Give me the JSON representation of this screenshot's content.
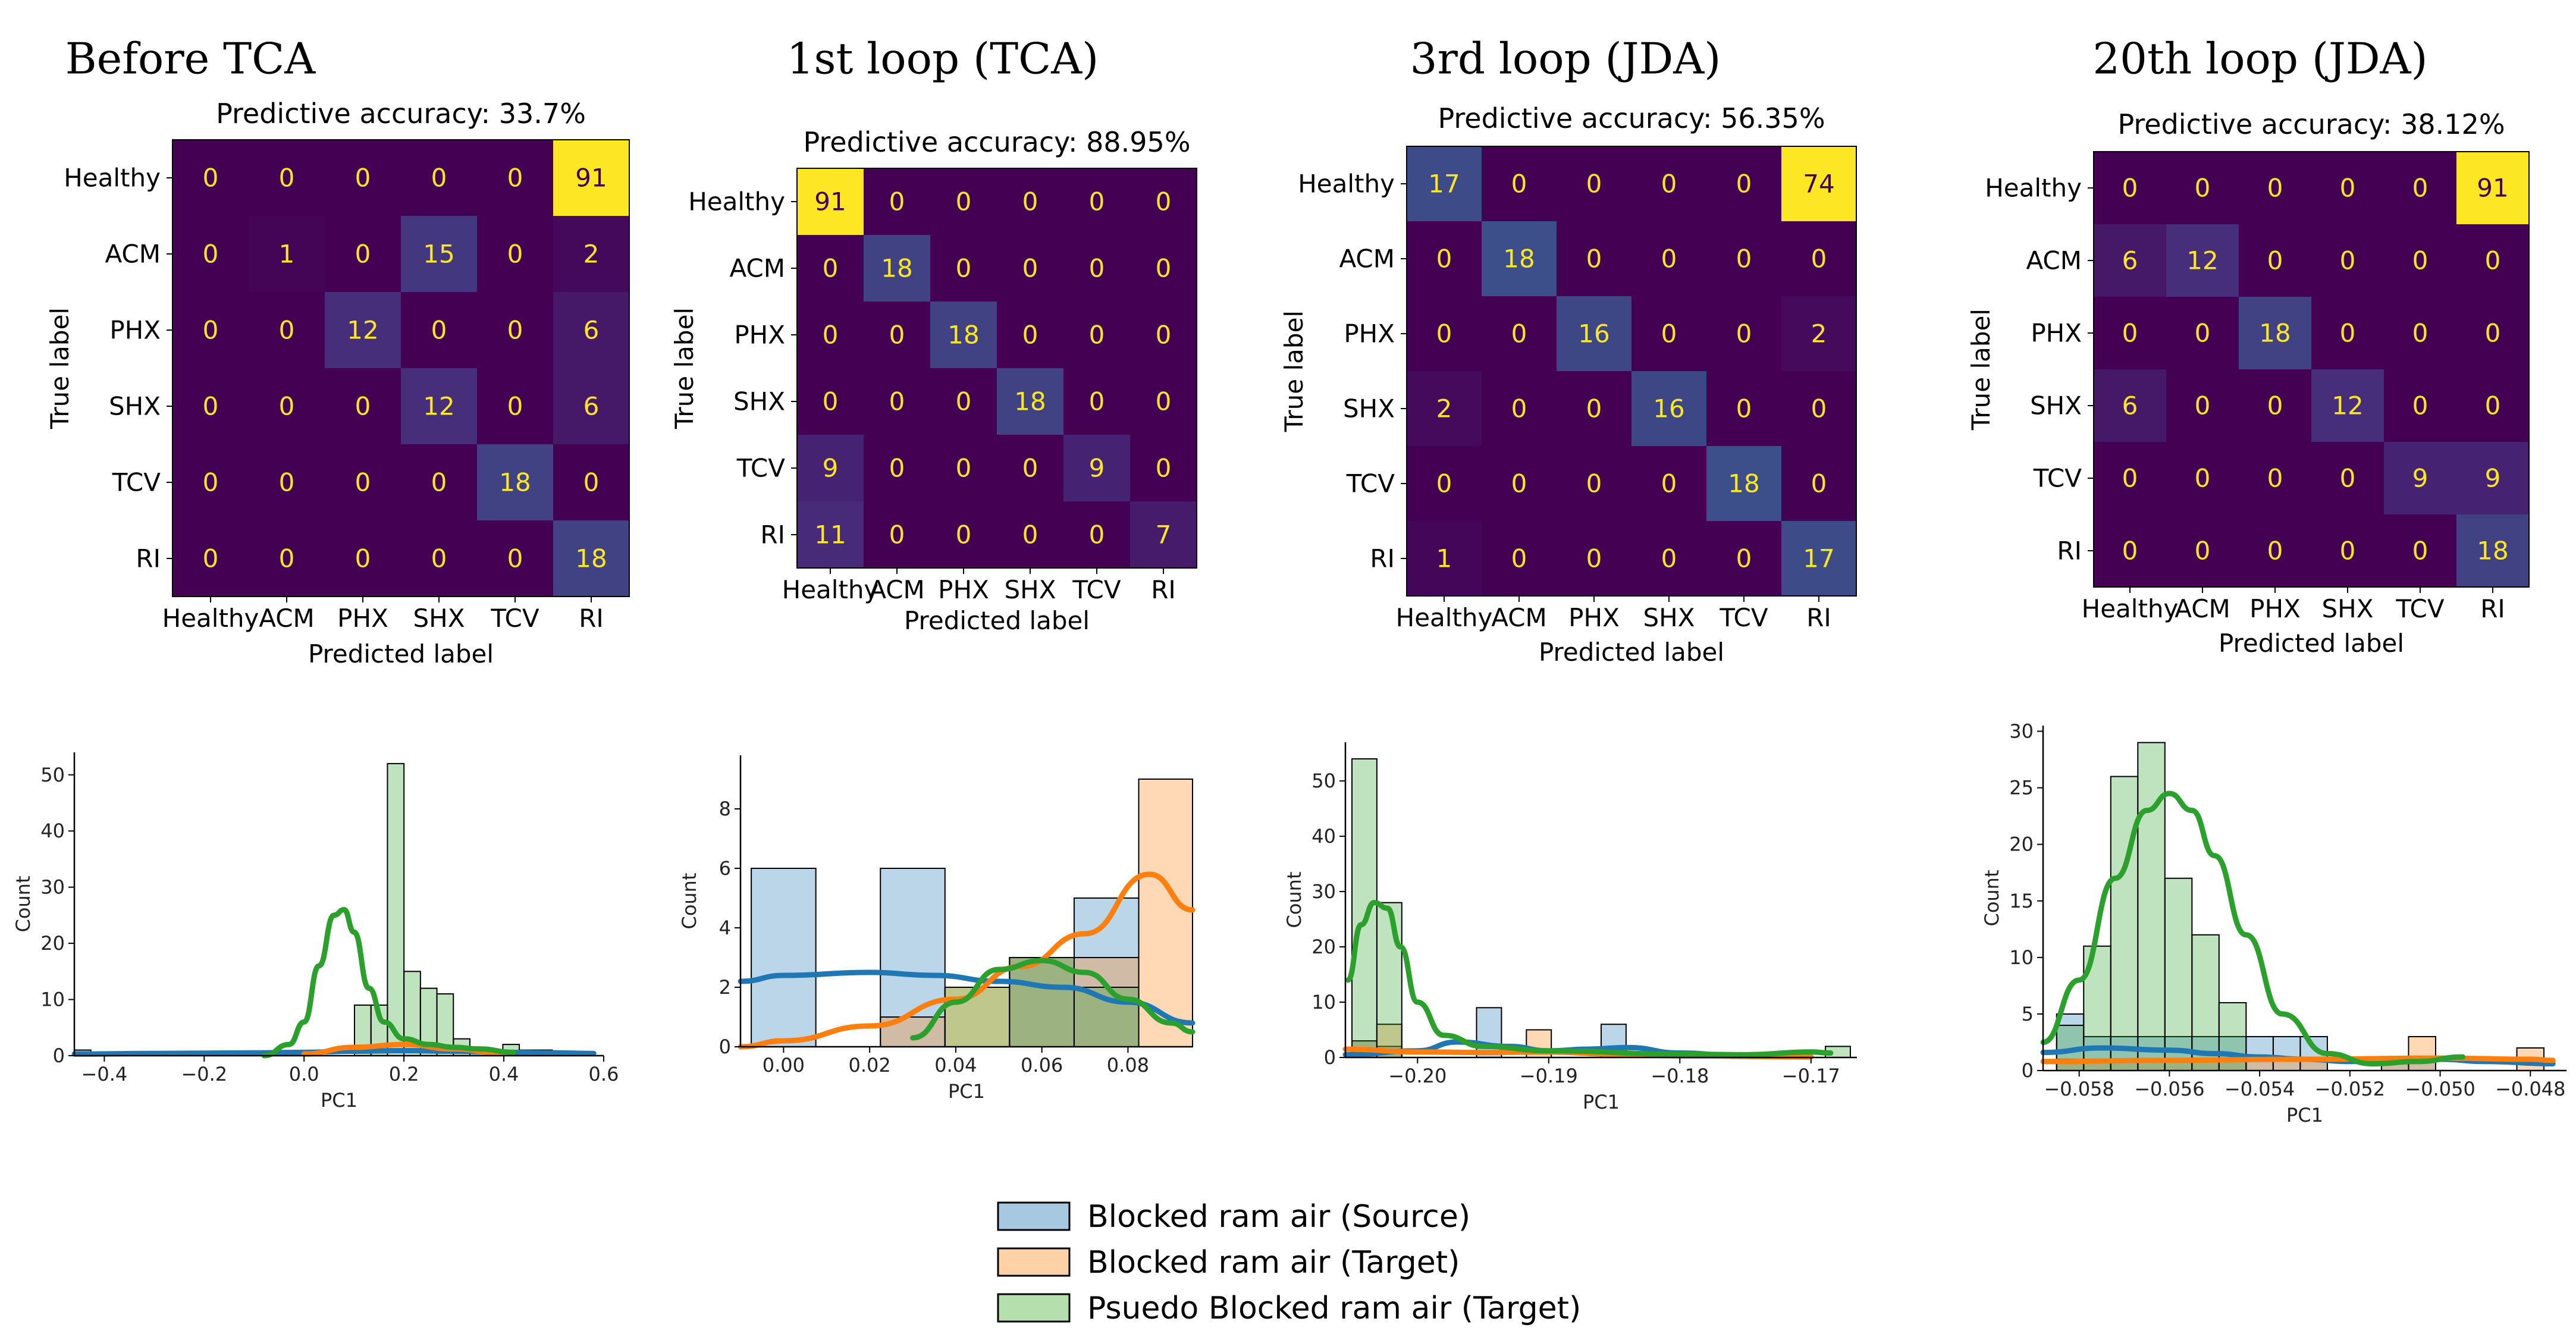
{
  "chart_data": [
    {
      "type": "heatmap",
      "panel_title": "Before TCA",
      "title": "Predictive accuracy: 33.7%",
      "xlabel": "Predicted label",
      "ylabel": "True label",
      "x_ticklabels": [
        "Healthy",
        "ACM",
        "PHX",
        "SHX",
        "TCV",
        "RI"
      ],
      "y_ticklabels": [
        "Healthy",
        "ACM",
        "PHX",
        "SHX",
        "TCV",
        "RI"
      ],
      "values": [
        [
          0,
          0,
          0,
          0,
          0,
          91
        ],
        [
          0,
          1,
          0,
          15,
          0,
          2
        ],
        [
          0,
          0,
          12,
          0,
          0,
          6
        ],
        [
          0,
          0,
          0,
          12,
          0,
          6
        ],
        [
          0,
          0,
          0,
          0,
          18,
          0
        ],
        [
          0,
          0,
          0,
          0,
          0,
          18
        ]
      ],
      "vmax": 91
    },
    {
      "type": "heatmap",
      "panel_title": "1st loop (TCA)",
      "title": "Predictive accuracy: 88.95%",
      "xlabel": "Predicted label",
      "ylabel": "True label",
      "x_ticklabels": [
        "Healthy",
        "ACM",
        "PHX",
        "SHX",
        "TCV",
        "RI"
      ],
      "y_ticklabels": [
        "Healthy",
        "ACM",
        "PHX",
        "SHX",
        "TCV",
        "RI"
      ],
      "values": [
        [
          91,
          0,
          0,
          0,
          0,
          0
        ],
        [
          0,
          18,
          0,
          0,
          0,
          0
        ],
        [
          0,
          0,
          18,
          0,
          0,
          0
        ],
        [
          0,
          0,
          0,
          18,
          0,
          0
        ],
        [
          9,
          0,
          0,
          0,
          9,
          0
        ],
        [
          11,
          0,
          0,
          0,
          0,
          7
        ]
      ],
      "vmax": 91
    },
    {
      "type": "heatmap",
      "panel_title": "3rd loop (JDA)",
      "title": "Predictive accuracy: 56.35%",
      "xlabel": "Predicted label",
      "ylabel": "True label",
      "x_ticklabels": [
        "Healthy",
        "ACM",
        "PHX",
        "SHX",
        "TCV",
        "RI"
      ],
      "y_ticklabels": [
        "Healthy",
        "ACM",
        "PHX",
        "SHX",
        "TCV",
        "RI"
      ],
      "values": [
        [
          17,
          0,
          0,
          0,
          0,
          74
        ],
        [
          0,
          18,
          0,
          0,
          0,
          0
        ],
        [
          0,
          0,
          16,
          0,
          0,
          2
        ],
        [
          2,
          0,
          0,
          16,
          0,
          0
        ],
        [
          0,
          0,
          0,
          0,
          18,
          0
        ],
        [
          1,
          0,
          0,
          0,
          0,
          17
        ]
      ],
      "vmax": 74
    },
    {
      "type": "heatmap",
      "panel_title": "20th loop (JDA)",
      "title": "Predictive accuracy: 38.12%",
      "xlabel": "Predicted label",
      "ylabel": "True label",
      "x_ticklabels": [
        "Healthy",
        "ACM",
        "PHX",
        "SHX",
        "TCV",
        "RI"
      ],
      "y_ticklabels": [
        "Healthy",
        "ACM",
        "PHX",
        "SHX",
        "TCV",
        "RI"
      ],
      "values": [
        [
          0,
          0,
          0,
          0,
          0,
          91
        ],
        [
          6,
          12,
          0,
          0,
          0,
          0
        ],
        [
          0,
          0,
          18,
          0,
          0,
          0
        ],
        [
          6,
          0,
          0,
          12,
          0,
          0
        ],
        [
          0,
          0,
          0,
          0,
          9,
          9
        ],
        [
          0,
          0,
          0,
          0,
          0,
          18
        ]
      ],
      "vmax": 91
    },
    {
      "type": "histogram",
      "xlabel": "PC1",
      "ylabel": "Count",
      "xlim": [
        -0.46,
        0.6
      ],
      "ylim": [
        0,
        54
      ],
      "xticks": [
        -0.4,
        -0.2,
        0.0,
        0.2,
        0.4,
        0.6
      ],
      "xtick_labels": [
        "−0.4",
        "−0.2",
        "0.0",
        "0.2",
        "0.4",
        "0.6"
      ],
      "yticks": [
        0,
        10,
        20,
        30,
        40,
        50
      ],
      "ytick_labels": [
        "0",
        "10",
        "20",
        "30",
        "40",
        "50"
      ],
      "series": [
        {
          "name": "Blocked ram air (Source)",
          "color": "#1f77b4",
          "bin_start": -0.46,
          "bin_width": 0.033,
          "counts": [
            1,
            0,
            0,
            0,
            0,
            0,
            0,
            0,
            0,
            0,
            0,
            0,
            0,
            0,
            0,
            0,
            0,
            0,
            0,
            0,
            0,
            0,
            0,
            0,
            0,
            0,
            0,
            0,
            0,
            0,
            0,
            0,
            0,
            0,
            0,
            0
          ],
          "kde_x": [
            -0.46,
            -0.3,
            -0.1,
            0.0,
            0.1,
            0.2,
            0.3,
            0.4,
            0.5,
            0.58
          ],
          "kde_y": [
            0.3,
            0.4,
            0.5,
            0.6,
            0.8,
            0.9,
            0.8,
            0.6,
            0.5,
            0.4
          ]
        },
        {
          "name": "Blocked ram air (Target)",
          "color": "#ff7f0e",
          "bin_start": -0.46,
          "bin_width": 0.033,
          "counts": [
            0,
            0,
            0,
            0,
            0,
            0,
            0,
            0,
            0,
            0,
            0,
            0,
            0,
            0,
            0,
            0,
            0,
            0,
            0,
            0,
            0,
            0,
            0,
            0,
            0,
            0,
            0,
            0,
            0,
            0,
            0,
            0,
            0,
            0,
            0,
            0
          ],
          "kde_x": [
            0.0,
            0.1,
            0.2,
            0.3,
            0.4
          ],
          "kde_y": [
            0.3,
            1.5,
            2.0,
            1.2,
            0.4
          ]
        },
        {
          "name": "Psuedo Blocked ram air (Target)",
          "color": "#2ca02c",
          "bin_start": -0.46,
          "bin_width": 0.033,
          "counts": [
            0,
            0,
            0,
            0,
            0,
            0,
            0,
            0,
            0,
            0,
            0,
            0,
            0,
            0,
            0,
            0,
            0,
            9,
            9,
            52,
            15,
            12,
            11,
            3,
            1,
            1,
            2,
            1,
            1,
            0,
            0,
            0,
            0,
            0,
            0,
            0
          ],
          "kde_x": [
            -0.08,
            -0.03,
            0.0,
            0.03,
            0.06,
            0.08,
            0.1,
            0.13,
            0.16,
            0.2,
            0.25,
            0.3,
            0.35,
            0.42
          ],
          "kde_y": [
            0,
            2,
            6,
            16,
            25,
            26,
            22,
            12,
            6,
            3,
            2,
            1.5,
            1.2,
            0.6
          ]
        }
      ]
    },
    {
      "type": "histogram",
      "xlabel": "PC1",
      "ylabel": "Count",
      "xlim": [
        -0.01,
        0.095
      ],
      "ylim": [
        0,
        9.8
      ],
      "xticks": [
        0.0,
        0.02,
        0.04,
        0.06,
        0.08
      ],
      "xtick_labels": [
        "0.00",
        "0.02",
        "0.04",
        "0.06",
        "0.08"
      ],
      "yticks": [
        0,
        2,
        4,
        6,
        8
      ],
      "ytick_labels": [
        "0",
        "2",
        "4",
        "6",
        "8"
      ],
      "series": [
        {
          "name": "Blocked ram air (Source)",
          "color": "#1f77b4",
          "bin_start": -0.0075,
          "bin_width": 0.015,
          "counts": [
            6,
            0,
            6,
            0,
            3,
            5,
            0
          ],
          "kde_x": [
            -0.01,
            0.0,
            0.02,
            0.035,
            0.05,
            0.065,
            0.08,
            0.095
          ],
          "kde_y": [
            2.2,
            2.4,
            2.5,
            2.4,
            2.2,
            2.0,
            1.5,
            0.8
          ]
        },
        {
          "name": "Blocked ram air (Target)",
          "color": "#ff7f0e",
          "bin_start": -0.0075,
          "bin_width": 0.015,
          "counts": [
            0,
            0,
            1,
            2,
            3,
            3,
            9
          ],
          "kde_x": [
            -0.01,
            0.0,
            0.02,
            0.04,
            0.055,
            0.07,
            0.085,
            0.095
          ],
          "kde_y": [
            0,
            0.2,
            0.7,
            1.6,
            2.7,
            3.8,
            5.8,
            4.6
          ]
        },
        {
          "name": "Psuedo Blocked ram air (Target)",
          "color": "#2ca02c",
          "bin_start": -0.0075,
          "bin_width": 0.015,
          "counts": [
            0,
            0,
            0,
            2,
            3,
            2,
            0
          ],
          "kde_x": [
            0.03,
            0.04,
            0.05,
            0.06,
            0.07,
            0.08,
            0.09,
            0.095
          ],
          "kde_y": [
            0.3,
            1.5,
            2.6,
            2.9,
            2.5,
            1.6,
            0.8,
            0.5
          ]
        }
      ]
    },
    {
      "type": "histogram",
      "xlabel": "PC1",
      "ylabel": "Count",
      "xlim": [
        -0.2055,
        -0.1665
      ],
      "ylim": [
        0,
        57
      ],
      "xticks": [
        -0.2,
        -0.19,
        -0.18,
        -0.17
      ],
      "xtick_labels": [
        "−0.20",
        "−0.19",
        "−0.18",
        "−0.17"
      ],
      "yticks": [
        0,
        10,
        20,
        30,
        40,
        50
      ],
      "ytick_labels": [
        "0",
        "10",
        "20",
        "30",
        "40",
        "50"
      ],
      "series": [
        {
          "name": "Blocked ram air (Source)",
          "color": "#1f77b4",
          "bin_start": -0.205,
          "bin_width": 0.0019,
          "counts": [
            3,
            2,
            0,
            0,
            0,
            9,
            0,
            0,
            0,
            0,
            6,
            0,
            0,
            0,
            0,
            0,
            0,
            0,
            0,
            0
          ],
          "kde_x": [
            -0.2055,
            -0.2,
            -0.197,
            -0.193,
            -0.19,
            -0.187,
            -0.184,
            -0.18,
            -0.175,
            -0.17
          ],
          "kde_y": [
            0.5,
            1.2,
            2.8,
            2.0,
            1.2,
            1.5,
            1.8,
            0.8,
            0.2,
            0.1
          ]
        },
        {
          "name": "Blocked ram air (Target)",
          "color": "#ff7f0e",
          "bin_start": -0.205,
          "bin_width": 0.0019,
          "counts": [
            3,
            6,
            0,
            0,
            0,
            0,
            0,
            5,
            0,
            0,
            0,
            0,
            0,
            0,
            0,
            0,
            0,
            0,
            0,
            0
          ],
          "kde_x": [
            -0.2055,
            -0.2,
            -0.195,
            -0.19,
            -0.185,
            -0.18,
            -0.17
          ],
          "kde_y": [
            1.5,
            1.0,
            0.9,
            1.0,
            0.6,
            0.3,
            0.1
          ]
        },
        {
          "name": "Psuedo Blocked ram air (Target)",
          "color": "#2ca02c",
          "bin_start": -0.205,
          "bin_width": 0.0019,
          "counts": [
            54,
            28,
            0,
            0,
            0,
            0,
            0,
            0,
            0,
            0,
            0,
            0,
            0,
            0,
            0,
            0,
            0,
            0,
            0,
            2
          ],
          "kde_x": [
            -0.2053,
            -0.2043,
            -0.2033,
            -0.2023,
            -0.2013,
            -0.2,
            -0.198,
            -0.195,
            -0.19,
            -0.18,
            -0.175,
            -0.17,
            -0.1685
          ],
          "kde_y": [
            14,
            24,
            28,
            27,
            20,
            10,
            4,
            2,
            1.2,
            0.6,
            0.5,
            1.0,
            0.8
          ]
        }
      ]
    },
    {
      "type": "histogram",
      "xlabel": "PC1",
      "ylabel": "Count",
      "xlim": [
        -0.0588,
        -0.0472
      ],
      "ylim": [
        0,
        30.5
      ],
      "xticks": [
        -0.058,
        -0.056,
        -0.054,
        -0.052,
        -0.05,
        -0.048
      ],
      "xtick_labels": [
        "−0.058",
        "−0.056",
        "−0.054",
        "−0.052",
        "−0.050",
        "−0.048"
      ],
      "yticks": [
        0,
        5,
        10,
        15,
        20,
        25,
        30
      ],
      "ytick_labels": [
        "0",
        "5",
        "10",
        "15",
        "20",
        "25",
        "30"
      ],
      "series": [
        {
          "name": "Blocked ram air (Source)",
          "color": "#1f77b4",
          "bin_start": -0.0585,
          "bin_width": 0.0006,
          "counts": [
            5,
            3,
            3,
            3,
            3,
            3,
            3,
            3,
            3,
            3,
            0,
            0,
            1,
            1,
            0,
            0,
            0,
            0
          ],
          "kde_x": [
            -0.0588,
            -0.0575,
            -0.056,
            -0.055,
            -0.054,
            -0.053,
            -0.052,
            -0.051,
            -0.05,
            -0.049,
            -0.0475
          ],
          "kde_y": [
            1.6,
            2.0,
            1.8,
            1.5,
            1.2,
            1.0,
            0.8,
            0.9,
            1.0,
            0.8,
            0.6
          ]
        },
        {
          "name": "Blocked ram air (Target)",
          "color": "#ff7f0e",
          "bin_start": -0.0585,
          "bin_width": 0.0006,
          "counts": [
            1,
            1,
            1,
            1,
            1,
            1,
            1,
            1,
            1,
            1,
            0,
            0,
            1,
            3,
            0,
            0,
            0,
            2
          ],
          "kde_x": [
            -0.0588,
            -0.056,
            -0.053,
            -0.05,
            -0.048,
            -0.0475
          ],
          "kde_y": [
            0.8,
            0.9,
            1.0,
            1.1,
            1.0,
            0.9
          ]
        },
        {
          "name": "Psuedo Blocked ram air (Target)",
          "color": "#2ca02c",
          "bin_start": -0.0585,
          "bin_width": 0.0006,
          "counts": [
            4,
            11,
            26,
            29,
            17,
            12,
            6,
            0,
            0,
            0,
            0,
            0,
            0,
            0,
            0,
            0,
            0,
            0
          ],
          "kde_x": [
            -0.0588,
            -0.058,
            -0.0572,
            -0.0565,
            -0.056,
            -0.0555,
            -0.055,
            -0.0543,
            -0.0535,
            -0.0525,
            -0.0515,
            -0.0505,
            -0.0495
          ],
          "kde_y": [
            2.5,
            8,
            17,
            23,
            24.5,
            23,
            19,
            12,
            5,
            1.5,
            0.6,
            0.8,
            1.2
          ]
        }
      ]
    }
  ],
  "legend": {
    "items": [
      {
        "label": "Blocked ram air (Source)",
        "color": "#a6c8e0"
      },
      {
        "label": "Blocked ram air (Target)",
        "color": "#fed2a6"
      },
      {
        "label": "Psuedo Blocked ram air (Target)",
        "color": "#b5e0ae"
      }
    ]
  }
}
